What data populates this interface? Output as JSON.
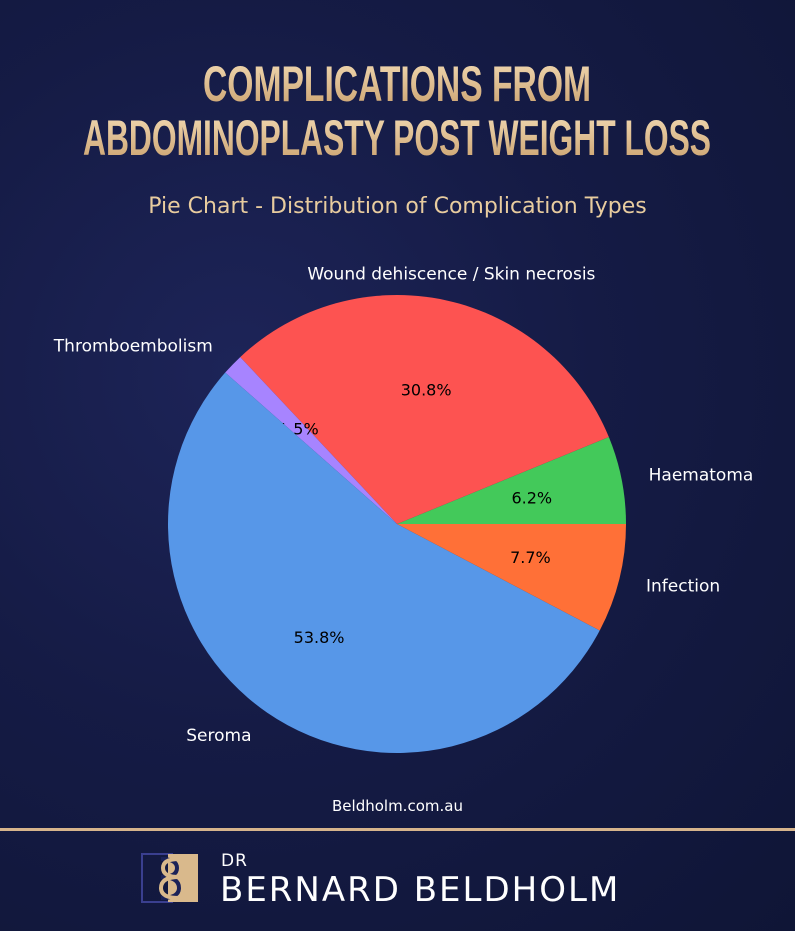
{
  "header": {
    "title_line1": "COMPLICATIONS FROM",
    "title_line2": "ABDOMINOPLASTY POST WEIGHT LOSS",
    "subtitle": "Pie Chart - Distribution of Complication Types"
  },
  "chart_data": {
    "type": "pie",
    "title": "Pie Chart - Distribution of Complication Types",
    "start_angle_deg": 0,
    "direction": "counterclockwise",
    "slices": [
      {
        "label": "Haematoma",
        "value": 6.2,
        "pct_label": "6.2%",
        "color": "#43c95a"
      },
      {
        "label": "Wound dehiscence / Skin necrosis",
        "value": 30.8,
        "pct_label": "30.8%",
        "color": "#fd5351"
      },
      {
        "label": "Thromboembolism",
        "value": 1.5,
        "pct_label": "1.5%",
        "color": "#a784ff"
      },
      {
        "label": "Seroma",
        "value": 53.8,
        "pct_label": "53.8%",
        "color": "#5797e8"
      },
      {
        "label": "Infection",
        "value": 7.7,
        "pct_label": "7.7%",
        "color": "#ff7037"
      }
    ]
  },
  "footer": {
    "website": "Beldholm.com.au",
    "brand_prefix": "DR",
    "brand_name": "BERNARD BELDHOLM"
  }
}
